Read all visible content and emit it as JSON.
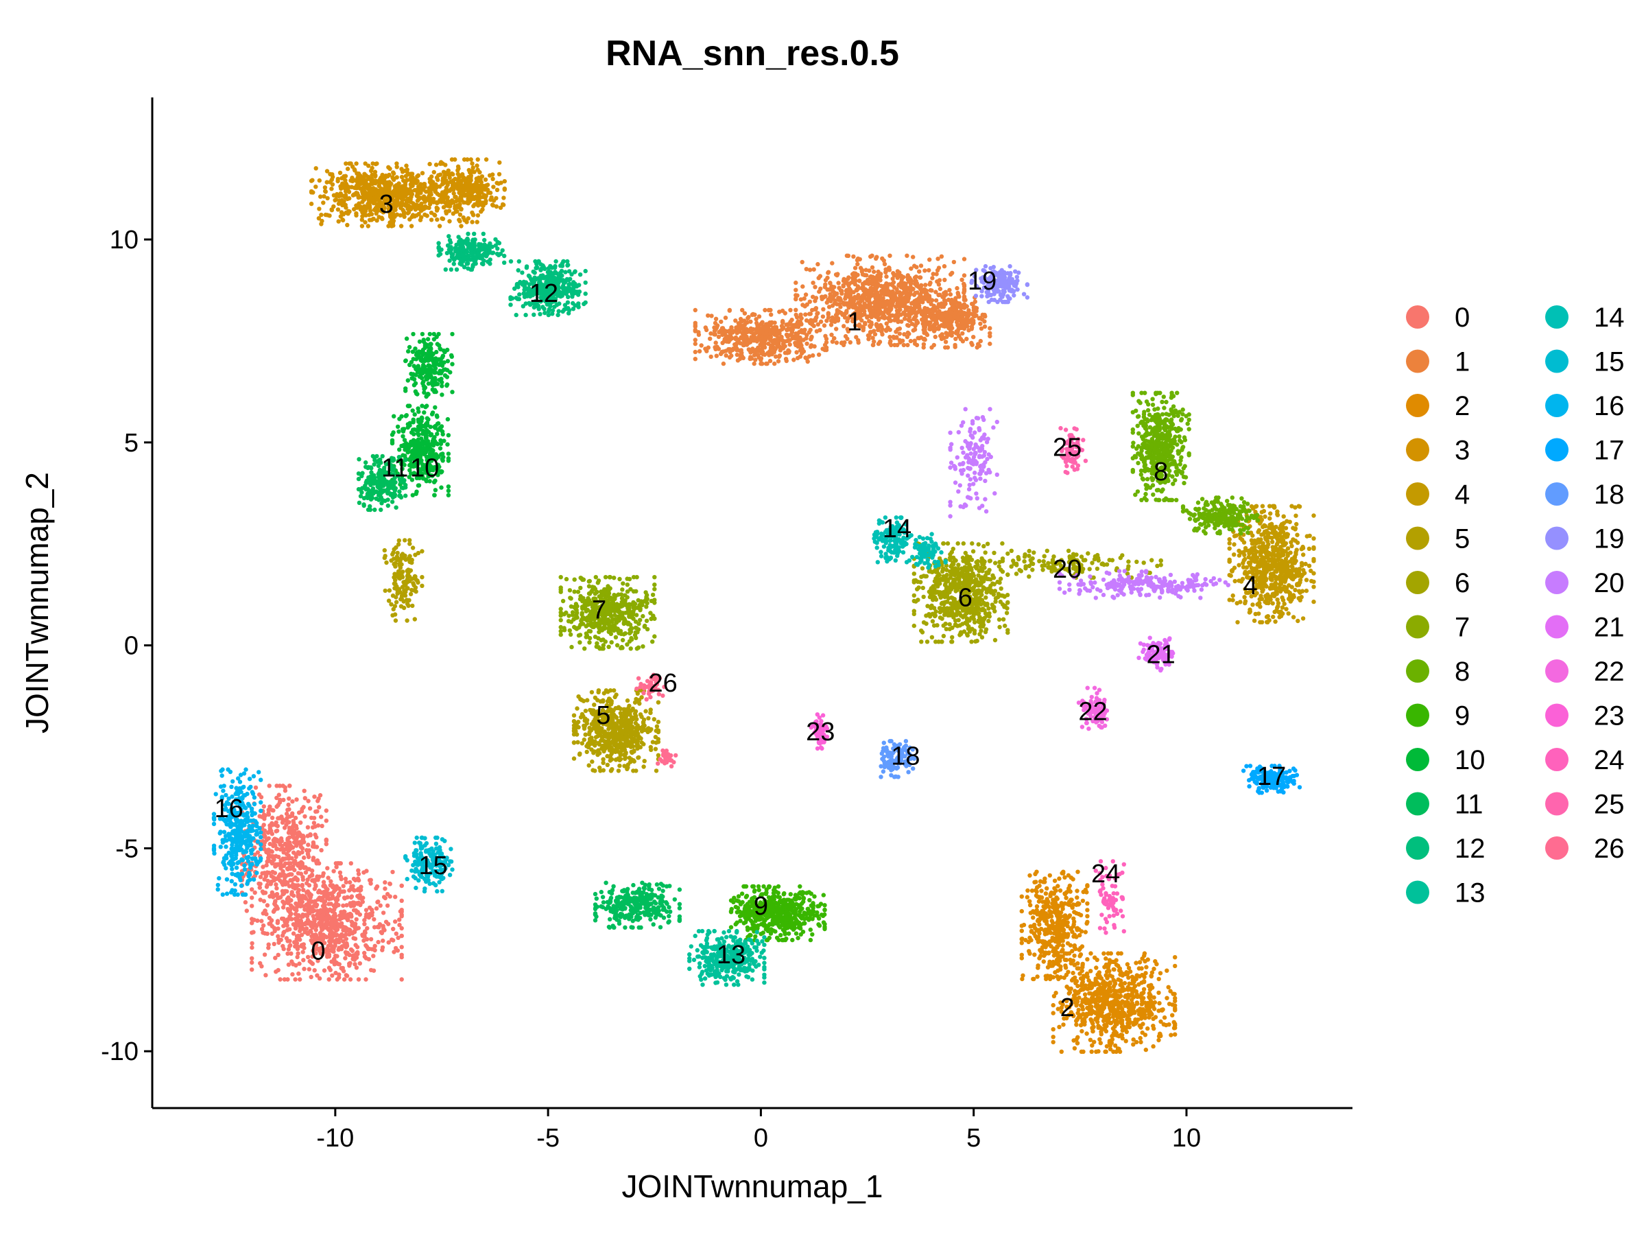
{
  "chart_data": {
    "type": "scatter",
    "title": "RNA_snn_res.0.5",
    "xlabel": "JOINTwnnumap_1",
    "ylabel": "JOINTwnnumap_2",
    "xlim": [
      -14.3,
      13.9
    ],
    "ylim": [
      -11.4,
      13.5
    ],
    "xticks": [
      -10,
      -5,
      0,
      5,
      10
    ],
    "yticks": [
      -10,
      -5,
      0,
      5,
      10
    ],
    "grid": false,
    "legend_position": "right",
    "legend_columns": 2,
    "series": [
      {
        "name": "0",
        "color": "#F8766D",
        "label_at": [
          -10.4,
          -7.5
        ],
        "label_visible": true,
        "blobs": [
          [
            -10.2,
            -6.8,
            1.6,
            1.3,
            1.2
          ],
          [
            -11.2,
            -5.0,
            0.9,
            1.4,
            0.6
          ]
        ]
      },
      {
        "name": "1",
        "color": "#EC823C",
        "label_at": [
          2.2,
          8.0
        ],
        "label_visible": true,
        "blobs": [
          [
            2.8,
            8.5,
            1.8,
            1.0,
            1.3
          ],
          [
            0.0,
            7.6,
            1.4,
            0.6,
            0.7
          ],
          [
            4.5,
            8.0,
            0.8,
            0.6,
            0.4
          ]
        ]
      },
      {
        "name": "2",
        "color": "#E08B00",
        "label_at": [
          7.2,
          -8.9
        ],
        "label_visible": true,
        "blobs": [
          [
            8.3,
            -8.8,
            1.3,
            1.1,
            1.0
          ],
          [
            6.9,
            -6.9,
            0.7,
            1.2,
            0.6
          ]
        ]
      },
      {
        "name": "3",
        "color": "#D39200",
        "label_at": [
          -8.8,
          10.9
        ],
        "label_visible": true,
        "blobs": [
          [
            -8.8,
            11.1,
            1.6,
            0.7,
            1.0
          ],
          [
            -6.9,
            11.2,
            0.8,
            0.7,
            0.4
          ]
        ]
      },
      {
        "name": "4",
        "color": "#C49A00",
        "label_at": [
          11.5,
          1.5
        ],
        "label_visible": true,
        "blobs": [
          [
            12.0,
            2.0,
            0.9,
            1.3,
            0.9
          ]
        ]
      },
      {
        "name": "5",
        "color": "#B3A000",
        "label_at": [
          -3.7,
          -1.7
        ],
        "label_visible": true,
        "blobs": [
          [
            -3.4,
            -2.1,
            0.9,
            0.9,
            0.8
          ],
          [
            -8.4,
            1.6,
            0.4,
            0.9,
            0.2
          ]
        ]
      },
      {
        "name": "6",
        "color": "#A3A500",
        "label_at": [
          4.8,
          1.2
        ],
        "label_visible": true,
        "blobs": [
          [
            4.7,
            1.3,
            1.0,
            1.1,
            0.9
          ],
          [
            7.2,
            2.0,
            2.0,
            0.3,
            0.2
          ]
        ]
      },
      {
        "name": "7",
        "color": "#8BAB00",
        "label_at": [
          -3.8,
          0.9
        ],
        "label_visible": true,
        "blobs": [
          [
            -3.6,
            0.8,
            1.0,
            0.8,
            0.7
          ]
        ]
      },
      {
        "name": "8",
        "color": "#6BB100",
        "label_at": [
          9.4,
          4.3
        ],
        "label_visible": true,
        "blobs": [
          [
            9.4,
            4.9,
            0.6,
            1.2,
            0.7
          ],
          [
            10.8,
            3.2,
            0.8,
            0.4,
            0.3
          ]
        ]
      },
      {
        "name": "9",
        "color": "#39B600",
        "label_at": [
          0.0,
          -6.4
        ],
        "label_visible": true,
        "blobs": [
          [
            0.4,
            -6.6,
            1.0,
            0.6,
            0.7
          ]
        ]
      },
      {
        "name": "10",
        "color": "#00BA38",
        "label_at": [
          -7.9,
          4.4
        ],
        "label_visible": true,
        "blobs": [
          [
            -8.0,
            4.8,
            0.6,
            1.0,
            0.5
          ],
          [
            -7.8,
            6.9,
            0.5,
            0.7,
            0.3
          ]
        ]
      },
      {
        "name": "11",
        "color": "#00BD5C",
        "label_at": [
          -8.6,
          4.4
        ],
        "label_visible": true,
        "blobs": [
          [
            -8.9,
            4.0,
            0.5,
            0.6,
            0.3
          ],
          [
            -2.9,
            -6.4,
            0.9,
            0.5,
            0.4
          ]
        ]
      },
      {
        "name": "12",
        "color": "#00BF7D",
        "label_at": [
          -5.1,
          8.7
        ],
        "label_visible": true,
        "blobs": [
          [
            -5.0,
            8.8,
            0.8,
            0.6,
            0.5
          ],
          [
            -6.8,
            9.7,
            0.7,
            0.4,
            0.3
          ]
        ]
      },
      {
        "name": "13",
        "color": "#00C19A",
        "label_at": [
          -0.7,
          -7.6
        ],
        "label_visible": true,
        "blobs": [
          [
            -0.8,
            -7.7,
            0.8,
            0.6,
            0.5
          ]
        ]
      },
      {
        "name": "14",
        "color": "#00C0B5",
        "label_at": [
          3.2,
          2.9
        ],
        "label_visible": true,
        "blobs": [
          [
            3.1,
            2.6,
            0.4,
            0.5,
            0.2
          ],
          [
            3.9,
            2.3,
            0.4,
            0.4,
            0.1
          ]
        ]
      },
      {
        "name": "15",
        "color": "#00BCD1",
        "label_at": [
          -7.7,
          -5.4
        ],
        "label_visible": true,
        "blobs": [
          [
            -7.8,
            -5.4,
            0.5,
            0.6,
            0.25
          ]
        ]
      },
      {
        "name": "16",
        "color": "#00B5EE",
        "label_at": [
          -12.5,
          -4.0
        ],
        "label_visible": true,
        "blobs": [
          [
            -12.3,
            -4.6,
            0.5,
            1.4,
            0.5
          ]
        ]
      },
      {
        "name": "17",
        "color": "#00A9FF",
        "label_at": [
          12.0,
          -3.2
        ],
        "label_visible": true,
        "blobs": [
          [
            12.0,
            -3.3,
            0.6,
            0.3,
            0.25
          ]
        ]
      },
      {
        "name": "18",
        "color": "#619CFF",
        "label_at": [
          3.4,
          -2.7
        ],
        "label_visible": true,
        "blobs": [
          [
            3.2,
            -2.8,
            0.4,
            0.4,
            0.15
          ]
        ]
      },
      {
        "name": "19",
        "color": "#9590FF",
        "label_at": [
          5.2,
          9.0
        ],
        "label_visible": true,
        "blobs": [
          [
            5.6,
            8.9,
            0.6,
            0.4,
            0.25
          ]
        ]
      },
      {
        "name": "20",
        "color": "#C77CFF",
        "label_at": [
          7.2,
          1.9
        ],
        "label_visible": true,
        "blobs": [
          [
            9.0,
            1.5,
            1.8,
            0.3,
            0.3
          ],
          [
            5.0,
            4.5,
            0.5,
            1.2,
            0.2
          ]
        ]
      },
      {
        "name": "21",
        "color": "#E36EF6",
        "label_at": [
          9.4,
          -0.2
        ],
        "label_visible": true,
        "blobs": [
          [
            9.3,
            -0.2,
            0.4,
            0.4,
            0.15
          ]
        ]
      },
      {
        "name": "22",
        "color": "#F369E0",
        "label_at": [
          7.8,
          -1.6
        ],
        "label_visible": true,
        "blobs": [
          [
            7.8,
            -1.6,
            0.3,
            0.5,
            0.12
          ]
        ]
      },
      {
        "name": "23",
        "color": "#FB61D7",
        "label_at": [
          1.4,
          -2.1
        ],
        "label_visible": true,
        "blobs": [
          [
            1.4,
            -2.1,
            0.2,
            0.4,
            0.08
          ]
        ]
      },
      {
        "name": "24",
        "color": "#FF62BC",
        "label_at": [
          8.1,
          -5.6
        ],
        "label_visible": true,
        "blobs": [
          [
            8.2,
            -6.2,
            0.3,
            0.8,
            0.1
          ]
        ]
      },
      {
        "name": "25",
        "color": "#FF65AE",
        "label_at": [
          7.2,
          4.9
        ],
        "label_visible": true,
        "blobs": [
          [
            7.3,
            4.8,
            0.3,
            0.5,
            0.1
          ]
        ]
      },
      {
        "name": "26",
        "color": "#FF6C91",
        "label_at": [
          -2.3,
          -0.9
        ],
        "label_visible": true,
        "blobs": [
          [
            -2.6,
            -1.0,
            0.3,
            0.3,
            0.06
          ],
          [
            -2.2,
            -2.8,
            0.2,
            0.2,
            0.04
          ]
        ]
      }
    ]
  }
}
